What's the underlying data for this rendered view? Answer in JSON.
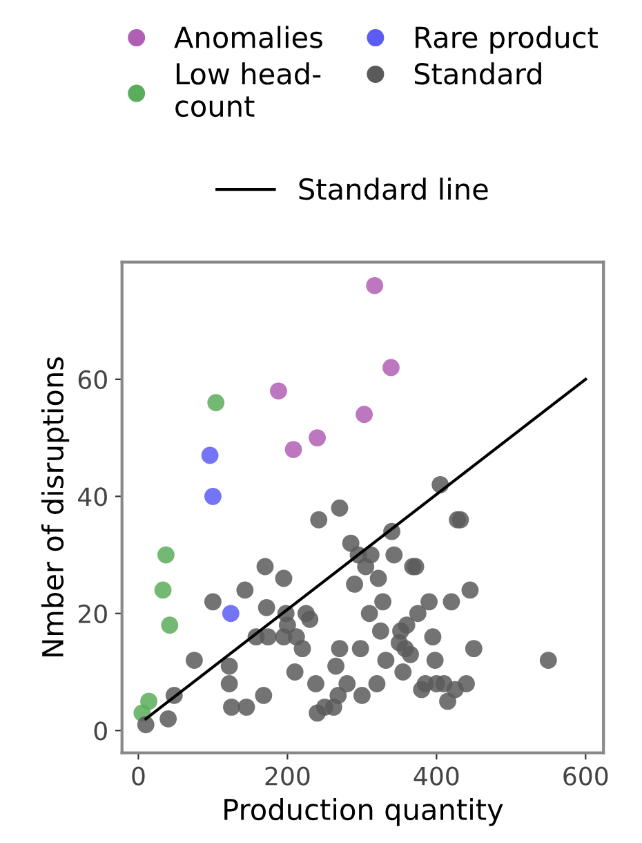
{
  "chart_data": {
    "type": "scatter",
    "xlabel": "Production quantity",
    "ylabel": "Nmber of disruptions",
    "xlim": [
      -22,
      624
    ],
    "ylim": [
      -3.8,
      80
    ],
    "xticks": [
      0,
      200,
      400,
      600
    ],
    "yticks": [
      0,
      20,
      40,
      60
    ],
    "grid": false,
    "legend": "top",
    "marker": "circle",
    "series": [
      {
        "name": "Anomalies",
        "color": "#b05fb5",
        "x": [
          317,
          339,
          303,
          188,
          208,
          240
        ],
        "values": [
          76,
          62,
          54,
          58,
          48,
          50
        ]
      },
      {
        "name": "Low head-\ncount",
        "color": "#5aad5a",
        "x": [
          104,
          37,
          33,
          42,
          5,
          14
        ],
        "values": [
          56,
          30,
          24,
          18,
          3,
          5
        ]
      },
      {
        "name": "Rare product",
        "color": "#5c5cf5",
        "x": [
          96,
          100,
          124
        ],
        "values": [
          47,
          40,
          20
        ]
      },
      {
        "name": "Standard",
        "color": "#5a5a5a",
        "x": [
          10,
          40,
          48,
          75,
          100,
          122,
          122,
          125,
          145,
          143,
          170,
          158,
          168,
          172,
          174,
          195,
          195,
          198,
          200,
          210,
          212,
          220,
          225,
          230,
          238,
          240,
          250,
          242,
          262,
          265,
          268,
          280,
          270,
          285,
          290,
          295,
          298,
          305,
          310,
          312,
          320,
          322,
          325,
          328,
          332,
          340,
          343,
          350,
          352,
          355,
          358,
          360,
          365,
          368,
          372,
          375,
          380,
          385,
          390,
          395,
          398,
          400,
          405,
          410,
          415,
          420,
          425,
          428,
          432,
          440,
          445,
          450,
          550,
          300,
          270
        ],
        "values": [
          1,
          2,
          6,
          12,
          22,
          8,
          11,
          4,
          4,
          24,
          28,
          16,
          6,
          21,
          16,
          26,
          16,
          20,
          18,
          10,
          16,
          14,
          20,
          19,
          8,
          3,
          4,
          36,
          4,
          11,
          6,
          8,
          38,
          32,
          25,
          30,
          14,
          28,
          20,
          30,
          8,
          26,
          17,
          22,
          12,
          34,
          30,
          15,
          17,
          10,
          14,
          18,
          13,
          28,
          28,
          20,
          7,
          8,
          22,
          16,
          12,
          8,
          42,
          8,
          5,
          22,
          7,
          36,
          36,
          8,
          24,
          14,
          12,
          6,
          14
        ]
      },
      {
        "name": "Standard line",
        "type": "line",
        "marker": "none",
        "color": "#000000",
        "x": [
          10,
          600
        ],
        "values": [
          2,
          60
        ]
      }
    ]
  }
}
